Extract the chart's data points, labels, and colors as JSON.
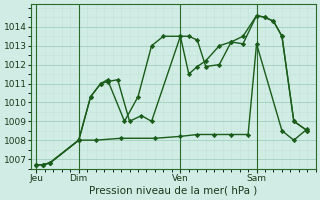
{
  "title": "Pression niveau de la mer( hPa )",
  "background_color": "#d0ece4",
  "grid_color_major": "#a8d4c4",
  "grid_color_minor": "#c0e4d8",
  "line_color": "#1a5c1a",
  "ylim": [
    1006.5,
    1015.2
  ],
  "yticks": [
    1007,
    1008,
    1009,
    1010,
    1011,
    1012,
    1013,
    1014
  ],
  "xlim": [
    -0.3,
    16.5
  ],
  "day_labels": [
    "Jeu",
    "Dim",
    "Ven",
    "Sam"
  ],
  "day_positions": [
    0.0,
    2.5,
    8.5,
    13.0
  ],
  "series1_x": [
    0.0,
    0.4,
    0.8,
    2.5,
    3.2,
    3.8,
    4.2,
    4.8,
    5.5,
    6.2,
    6.8,
    8.5,
    9.0,
    9.5,
    10.0,
    10.8,
    11.5,
    12.2,
    13.0,
    13.5,
    14.0,
    14.5,
    15.2,
    16.0
  ],
  "series1_y": [
    1006.7,
    1006.7,
    1006.8,
    1008.0,
    1010.3,
    1011.0,
    1011.1,
    1011.2,
    1009.0,
    1009.3,
    1009.0,
    1013.5,
    1013.5,
    1013.3,
    1011.9,
    1012.0,
    1013.2,
    1013.5,
    1014.6,
    1014.5,
    1014.3,
    1013.5,
    1009.0,
    1008.5
  ],
  "series2_x": [
    0.0,
    0.4,
    0.8,
    2.5,
    3.2,
    3.8,
    4.2,
    5.2,
    6.0,
    6.8,
    7.5,
    8.5,
    9.0,
    9.5,
    10.0,
    10.8,
    11.5,
    12.2,
    13.0,
    13.5,
    14.0,
    14.5,
    15.2,
    16.0
  ],
  "series2_y": [
    1006.7,
    1006.7,
    1006.8,
    1008.0,
    1010.3,
    1011.0,
    1011.2,
    1009.0,
    1010.3,
    1013.0,
    1013.5,
    1013.5,
    1011.5,
    1011.9,
    1012.2,
    1013.0,
    1013.2,
    1013.1,
    1014.6,
    1014.5,
    1014.3,
    1013.5,
    1009.0,
    1008.5
  ],
  "series3_x": [
    0.0,
    0.4,
    0.8,
    2.5,
    3.5,
    5.0,
    7.0,
    8.5,
    9.5,
    10.5,
    11.5,
    12.5,
    13.0,
    14.5,
    15.2,
    16.0
  ],
  "series3_y": [
    1006.7,
    1006.7,
    1006.8,
    1008.0,
    1008.0,
    1008.1,
    1008.1,
    1008.2,
    1008.3,
    1008.3,
    1008.3,
    1008.3,
    1013.1,
    1008.5,
    1008.0,
    1008.6
  ]
}
